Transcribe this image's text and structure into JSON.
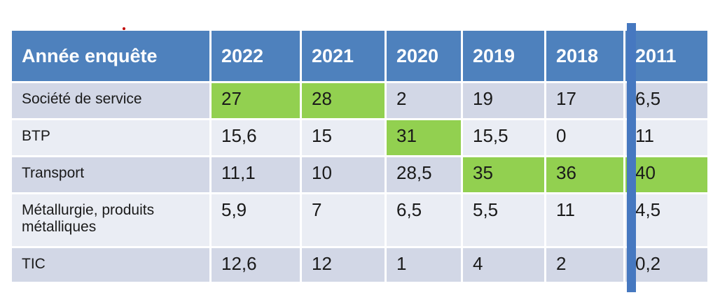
{
  "colors": {
    "header_blue": "#4E81BD",
    "divider_bar_blue": "#4678C0",
    "row_band_dark": "#D2D7E6",
    "row_band_light": "#EAEDF4",
    "highlight_green": "#92D050",
    "text": "#1A1A1A",
    "header_text": "#FFFFFF",
    "dot_red": "#C00000"
  },
  "table": {
    "header": [
      "Année enquête",
      "2022",
      "2021",
      "2020",
      "2019",
      "2018",
      "2011"
    ],
    "rows": [
      {
        "label": "Société de service",
        "values": [
          "27",
          "28",
          "2",
          "19",
          "17",
          "6,5"
        ],
        "highlights": [
          0,
          1
        ]
      },
      {
        "label": "BTP",
        "values": [
          "15,6",
          "15",
          "31",
          "15,5",
          "0",
          "11"
        ],
        "highlights": [
          2
        ]
      },
      {
        "label": "Transport",
        "values": [
          "11,1",
          "10",
          "28,5",
          "35",
          "36",
          "40"
        ],
        "highlights": [
          3,
          4,
          5
        ]
      },
      {
        "label": "Métallurgie, produits métalliques",
        "values": [
          "5,9",
          "7",
          "6,5",
          "5,5",
          "11",
          "4,5"
        ],
        "highlights": []
      },
      {
        "label": "TIC",
        "values": [
          "12,6",
          "12",
          "1",
          "4",
          "2",
          "0,2"
        ],
        "highlights": []
      }
    ]
  },
  "chart_data": {
    "type": "table",
    "title": "",
    "columns": [
      "Année enquête",
      "2022",
      "2021",
      "2020",
      "2019",
      "2018",
      "2011"
    ],
    "rows": [
      {
        "label": "Société de service",
        "values": [
          27,
          28,
          2,
          19,
          17,
          6.5
        ],
        "highlighted_years": [
          "2022",
          "2021"
        ]
      },
      {
        "label": "BTP",
        "values": [
          15.6,
          15,
          31,
          15.5,
          0,
          11
        ],
        "highlighted_years": [
          "2020"
        ]
      },
      {
        "label": "Transport",
        "values": [
          11.1,
          10,
          28.5,
          35,
          36,
          40
        ],
        "highlighted_years": [
          "2019",
          "2018",
          "2011"
        ]
      },
      {
        "label": "Métallurgie, produits métalliques",
        "values": [
          5.9,
          7,
          6.5,
          5.5,
          11,
          4.5
        ],
        "highlighted_years": []
      },
      {
        "label": "TIC",
        "values": [
          12.6,
          12,
          1,
          4,
          2,
          0.2
        ],
        "highlighted_years": []
      }
    ],
    "decimal_separator": ",",
    "legend_position": "none",
    "notes_visible_marks": [
      "vertical blue divider bar before 2011 column",
      "small red dot above header"
    ]
  }
}
